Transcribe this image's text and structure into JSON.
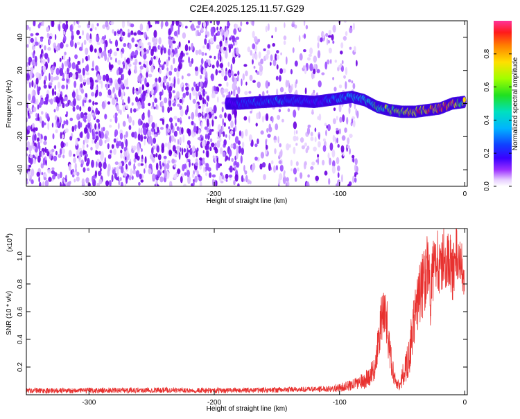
{
  "title": "C2E4.2025.125.11.57.G29",
  "colors": {
    "snr_line": "#e8312f",
    "spectrogram_palette": [
      "#ffffff",
      "#f0e0ff",
      "#cc99ff",
      "#8a2be2",
      "#5a00ff",
      "#2040ff",
      "#00c8ff",
      "#00e68a",
      "#80ff00",
      "#ffe600",
      "#ff8000",
      "#ff1a1a",
      "#ff3399"
    ]
  },
  "chart_data": [
    {
      "type": "heatmap",
      "panel": "spectrogram",
      "xlabel": "Height of straight line (km)",
      "ylabel": "Frequency (Hz)",
      "xlim": [
        -350,
        2
      ],
      "ylim": [
        -50,
        50
      ],
      "x_ticks": [
        -300,
        -200,
        -100,
        0
      ],
      "x_tick_labels": [
        "-300",
        "-200",
        "-100",
        "0"
      ],
      "y_ticks": [
        -40,
        -20,
        0,
        20,
        40
      ],
      "y_tick_labels": [
        "-40",
        "-20",
        "0",
        "20",
        "40"
      ],
      "colorbar": {
        "label": "Normalized spectral amplitude",
        "range": [
          0,
          1
        ],
        "ticks": [
          0.0,
          0.2,
          0.4,
          0.6,
          0.8
        ],
        "tick_labels": [
          "0.0",
          "0.2",
          "0.4",
          "0.6",
          "0.8"
        ]
      },
      "noise_fill": {
        "from_x": -350,
        "to_x": -95,
        "dense_until_x": -180
      },
      "signal_ridge": {
        "x": [
          -190,
          -180,
          -160,
          -140,
          -120,
          -100,
          -90,
          -80,
          -70,
          -60,
          -50,
          -40,
          -30,
          -20,
          -10,
          0
        ],
        "freq": [
          0,
          0,
          1,
          2,
          1,
          3,
          4,
          2,
          -2,
          -4,
          -5,
          -5,
          -4,
          -3,
          0,
          1
        ],
        "amplitude": [
          0.15,
          0.25,
          0.3,
          0.3,
          0.2,
          0.35,
          0.4,
          0.45,
          0.6,
          0.7,
          0.75,
          0.85,
          0.9,
          0.9,
          0.85,
          0.7
        ]
      }
    },
    {
      "type": "line",
      "panel": "snr",
      "xlabel": "Height of straight line (km)",
      "ylabel": "SNR (10 * v/v)",
      "y_multiplier_label": "(x10",
      "y_multiplier_exp": "4",
      "xlim": [
        -350,
        2
      ],
      "ylim": [
        0,
        1.2
      ],
      "x_ticks": [
        -300,
        -200,
        -100,
        0
      ],
      "x_tick_labels": [
        "-300",
        "-200",
        "-100",
        "0"
      ],
      "y_ticks": [
        0.2,
        0.4,
        0.6,
        0.8,
        1.0
      ],
      "y_tick_labels": [
        "0.2",
        "0.4",
        "0.6",
        "0.8",
        "1.0"
      ],
      "series": [
        {
          "x": [
            -350,
            -300,
            -250,
            -200,
            -150,
            -120,
            -100,
            -90,
            -85,
            -80,
            -75,
            -72,
            -70,
            -68,
            -66,
            -64,
            -62,
            -60,
            -58,
            -56,
            -54,
            -52,
            -50,
            -47,
            -44,
            -42,
            -40,
            -37,
            -35,
            -32,
            -30,
            -27,
            -25,
            -22,
            -20,
            -17,
            -15,
            -12,
            -10,
            -7,
            -5,
            -3,
            -1,
            0
          ],
          "y": [
            0.03,
            0.03,
            0.035,
            0.03,
            0.035,
            0.04,
            0.05,
            0.07,
            0.09,
            0.1,
            0.15,
            0.2,
            0.3,
            0.45,
            0.55,
            0.65,
            0.5,
            0.3,
            0.2,
            0.12,
            0.08,
            0.07,
            0.12,
            0.2,
            0.3,
            0.45,
            0.55,
            0.7,
            0.75,
            0.85,
            0.95,
            0.7,
            0.9,
            1.05,
            0.85,
            1.0,
            0.95,
            1.0,
            0.85,
            1.05,
            0.9,
            1.0,
            0.8,
            0.9
          ],
          "spread": [
            0.02,
            0.02,
            0.02,
            0.02,
            0.02,
            0.02,
            0.03,
            0.04,
            0.05,
            0.06,
            0.08,
            0.1,
            0.12,
            0.18,
            0.2,
            0.22,
            0.2,
            0.15,
            0.1,
            0.06,
            0.04,
            0.04,
            0.08,
            0.12,
            0.15,
            0.18,
            0.2,
            0.22,
            0.25,
            0.25,
            0.25,
            0.25,
            0.25,
            0.25,
            0.22,
            0.22,
            0.2,
            0.2,
            0.2,
            0.2,
            0.18,
            0.18,
            0.15,
            0.15
          ]
        }
      ]
    }
  ]
}
